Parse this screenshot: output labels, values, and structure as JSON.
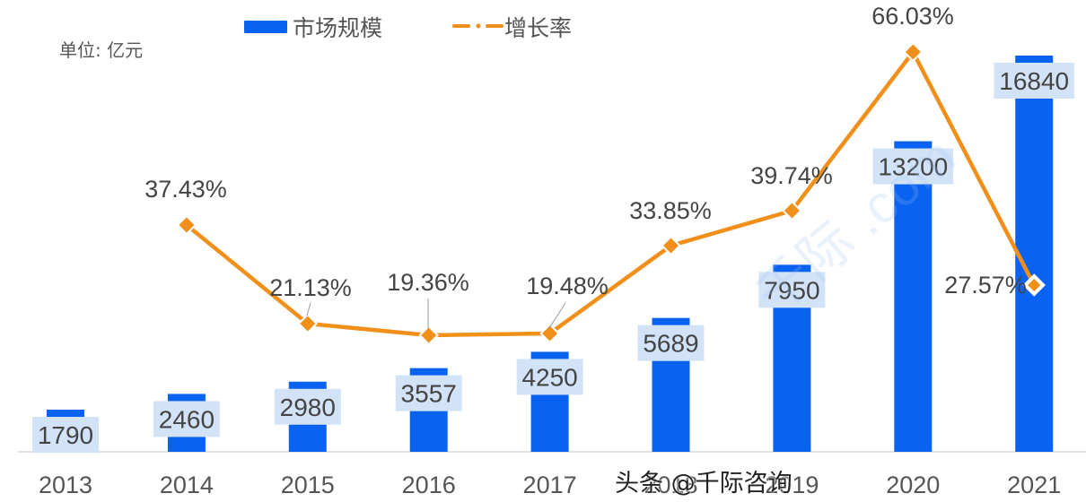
{
  "unit_label": "单位: 亿元",
  "legend": {
    "bar_label": "市场规模",
    "line_label": "增长率"
  },
  "credit": "头条 @千际咨询",
  "watermark": "千际 .com",
  "colors": {
    "bar": "#0a63f0",
    "line": "#f0901a",
    "label_box": "#d2e3f8",
    "label_text": "#444444",
    "axis": "#d8d8d8"
  },
  "chart_data": {
    "type": "bar",
    "title": "",
    "xlabel": "",
    "ylabel": "单位: 亿元",
    "categories": [
      "2013",
      "2014",
      "2015",
      "2016",
      "2017",
      "2018",
      "2019",
      "2020",
      "2021"
    ],
    "series": [
      {
        "name": "市场规模",
        "type": "bar",
        "values": [
          1790,
          2460,
          2980,
          3557,
          4250,
          5689,
          7950,
          13200,
          16840
        ],
        "labels": [
          "1790",
          "2460",
          "2980",
          "3557",
          "4250",
          "5689",
          "7950",
          "13200",
          "16840"
        ]
      },
      {
        "name": "增长率",
        "type": "line",
        "values": [
          null,
          37.43,
          21.13,
          19.36,
          19.48,
          33.85,
          39.74,
          66.03,
          27.57
        ],
        "labels": [
          "",
          "37.43%",
          "21.13%",
          "19.36%",
          "19.48%",
          "33.85%",
          "39.74%",
          "66.03%",
          "27.57%"
        ]
      }
    ],
    "grid": false,
    "legend_position": "top"
  }
}
